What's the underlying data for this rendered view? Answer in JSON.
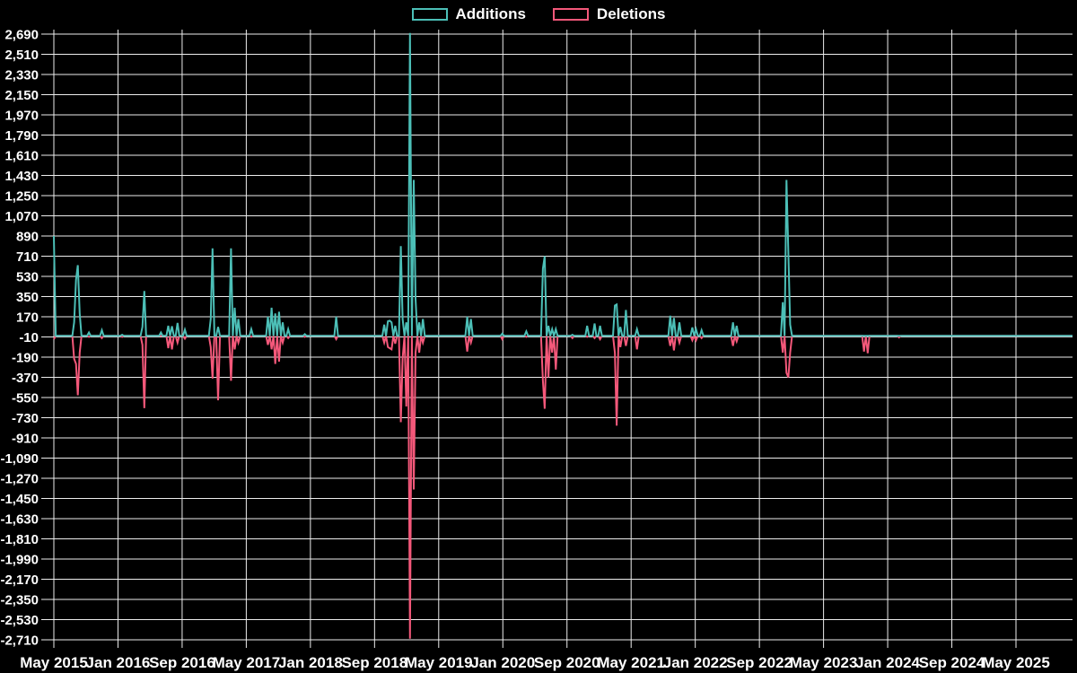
{
  "page": {
    "background": "#000000",
    "text_color": "#ffffff",
    "grid_color": "#ededed"
  },
  "chart_data": {
    "type": "line",
    "title": "",
    "xlabel": "",
    "ylabel": "",
    "grid": "on",
    "legend_position": "top-center",
    "time_unit": "week",
    "weeks_total": 553,
    "default_value": 0,
    "series": [
      {
        "name": "Additions",
        "color": "#4cbfb7"
      },
      {
        "name": "Deletions",
        "color": "#f4587a"
      }
    ],
    "x_axis": {
      "start_label": "May 2015",
      "end_label": "May 2025",
      "tick_interval_months": 8,
      "tick_labels": [
        "May 2015",
        "Jan 2016",
        "Sep 2016",
        "May 2017",
        "Jan 2018",
        "Sep 2018",
        "May 2019",
        "Jan 2020",
        "Sep 2020",
        "May 2021",
        "Jan 2022",
        "Sep 2022",
        "May 2023",
        "Jan 2024",
        "Sep 2024",
        "May 2025"
      ]
    },
    "y_axis": {
      "min": -2710,
      "max": 2690,
      "step": 180,
      "tick_labels": [
        "2,690",
        "2,510",
        "2,330",
        "2,150",
        "1,970",
        "1,790",
        "1,610",
        "1,430",
        "1,250",
        "1,070",
        "890",
        "710",
        "530",
        "350",
        "170",
        "-10",
        "-190",
        "-370",
        "-550",
        "-730",
        "-910",
        "-1,090",
        "-1,270",
        "-1,450",
        "-1,630",
        "-1,810",
        "-1,990",
        "-2,170",
        "-2,350",
        "-2,530",
        "-2,710"
      ]
    },
    "sparse_weekly_points": [
      [
        0,
        890,
        -30
      ],
      [
        11,
        120,
        -205
      ],
      [
        12,
        500,
        -250
      ],
      [
        13,
        630,
        -530
      ],
      [
        14,
        200,
        -150
      ],
      [
        19,
        30,
        -10
      ],
      [
        26,
        50,
        -20
      ],
      [
        37,
        10,
        -10
      ],
      [
        48,
        80,
        -80
      ],
      [
        49,
        400,
        -645
      ],
      [
        58,
        30,
        0
      ],
      [
        62,
        90,
        -110
      ],
      [
        64,
        85,
        -120
      ],
      [
        67,
        115,
        -60
      ],
      [
        71,
        55,
        -25
      ],
      [
        85,
        150,
        -100
      ],
      [
        86,
        780,
        -380
      ],
      [
        89,
        80,
        -575
      ],
      [
        96,
        780,
        -400
      ],
      [
        98,
        250,
        -120
      ],
      [
        100,
        150,
        -60
      ],
      [
        107,
        60,
        -10
      ],
      [
        116,
        170,
        -80
      ],
      [
        118,
        250,
        -120
      ],
      [
        120,
        200,
        -250
      ],
      [
        122,
        215,
        -230
      ],
      [
        124,
        120,
        -60
      ],
      [
        127,
        60,
        -20
      ],
      [
        136,
        15,
        -10
      ],
      [
        153,
        170,
        -30
      ],
      [
        179,
        100,
        -60
      ],
      [
        181,
        130,
        -100
      ],
      [
        182,
        135,
        -110
      ],
      [
        183,
        120,
        -120
      ],
      [
        185,
        90,
        -70
      ],
      [
        188,
        800,
        -770
      ],
      [
        189,
        150,
        -200
      ],
      [
        191,
        120,
        -630
      ],
      [
        193,
        2700,
        -2700
      ],
      [
        195,
        1390,
        -1370
      ],
      [
        196,
        330,
        -150
      ],
      [
        198,
        120,
        -150
      ],
      [
        200,
        150,
        -60
      ],
      [
        224,
        170,
        -140
      ],
      [
        226,
        150,
        -60
      ],
      [
        243,
        20,
        -30
      ],
      [
        256,
        40,
        -10
      ],
      [
        265,
        600,
        -400
      ],
      [
        266,
        710,
        -650
      ],
      [
        268,
        90,
        -370
      ],
      [
        270,
        60,
        -150
      ],
      [
        272,
        60,
        -300
      ],
      [
        281,
        10,
        -20
      ],
      [
        289,
        90,
        -10
      ],
      [
        293,
        110,
        -20
      ],
      [
        296,
        90,
        -30
      ],
      [
        304,
        270,
        -150
      ],
      [
        305,
        280,
        -800
      ],
      [
        307,
        80,
        -100
      ],
      [
        310,
        230,
        -90
      ],
      [
        316,
        60,
        -120
      ],
      [
        334,
        180,
        -90
      ],
      [
        336,
        160,
        -130
      ],
      [
        339,
        120,
        -60
      ],
      [
        346,
        75,
        -40
      ],
      [
        348,
        60,
        -40
      ],
      [
        351,
        50,
        -20
      ],
      [
        368,
        120,
        -90
      ],
      [
        370,
        90,
        -50
      ],
      [
        395,
        300,
        -150
      ],
      [
        397,
        1390,
        -330
      ],
      [
        398,
        740,
        -370
      ],
      [
        399,
        100,
        -150
      ],
      [
        439,
        0,
        -140
      ],
      [
        441,
        0,
        -155
      ],
      [
        458,
        0,
        -15
      ]
    ]
  }
}
